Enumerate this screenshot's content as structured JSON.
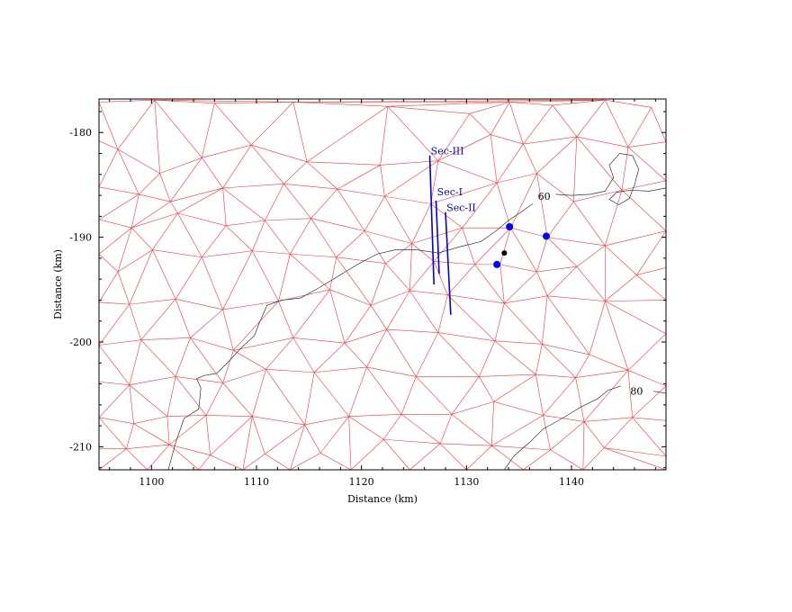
{
  "chart_data": {
    "type": "map",
    "xlabel": "Distance (km)",
    "ylabel": "Distance (km)",
    "xlim": [
      1095,
      1149
    ],
    "ylim": [
      -212.2,
      -176.8
    ],
    "x_ticks": [
      1100,
      1110,
      1120,
      1130,
      1140
    ],
    "y_ticks": [
      -180,
      -190,
      -200,
      -210
    ],
    "colors": {
      "mesh": "#ff3333",
      "sections": "#0000e0",
      "contours": "#333333",
      "stations": "#0000ff",
      "event": "#000000"
    },
    "mesh_nodes": [
      [
        1095,
        -177.1
      ],
      [
        1100.3,
        -176.9
      ],
      [
        1106,
        -177.2
      ],
      [
        1113.5,
        -177.1
      ],
      [
        1122.5,
        -177.5
      ],
      [
        1130.3,
        -178.2
      ],
      [
        1134.1,
        -177.1
      ],
      [
        1138.2,
        -177.4
      ],
      [
        1143.2,
        -176.9
      ],
      [
        1147.6,
        -177.6
      ],
      [
        1095,
        -180.8
      ],
      [
        1096.8,
        -181.6
      ],
      [
        1100.8,
        -183.9
      ],
      [
        1104.8,
        -182.4
      ],
      [
        1109.5,
        -181.2
      ],
      [
        1114.8,
        -182.8
      ],
      [
        1121.8,
        -183.1
      ],
      [
        1127.3,
        -182.7
      ],
      [
        1132.3,
        -180.2
      ],
      [
        1135.4,
        -181.1
      ],
      [
        1140.5,
        -180.4
      ],
      [
        1145.4,
        -181.4
      ],
      [
        1149,
        -180.9
      ],
      [
        1095,
        -185.2
      ],
      [
        1098.8,
        -185.9
      ],
      [
        1101.8,
        -186.6
      ],
      [
        1106.8,
        -185.3
      ],
      [
        1112.6,
        -184.9
      ],
      [
        1117.7,
        -185.4
      ],
      [
        1122.2,
        -186.1
      ],
      [
        1126.6,
        -186.8
      ],
      [
        1132.9,
        -184.8
      ],
      [
        1136.7,
        -183.9
      ],
      [
        1140.2,
        -186.6
      ],
      [
        1144.8,
        -185.5
      ],
      [
        1149,
        -184.6
      ],
      [
        1095,
        -188.3
      ],
      [
        1098.1,
        -189.1
      ],
      [
        1102.5,
        -187.7
      ],
      [
        1107.1,
        -188.9
      ],
      [
        1110.8,
        -188.4
      ],
      [
        1115.2,
        -188.2
      ],
      [
        1120.3,
        -189.4
      ],
      [
        1124.8,
        -190.6
      ],
      [
        1129.6,
        -189.1
      ],
      [
        1134.2,
        -189.1
      ],
      [
        1137.7,
        -190.0
      ],
      [
        1143.2,
        -190.8
      ],
      [
        1149,
        -189.4
      ],
      [
        1095,
        -191.6
      ],
      [
        1096.8,
        -193.3
      ],
      [
        1100.1,
        -191.2
      ],
      [
        1104.8,
        -191.9
      ],
      [
        1109.6,
        -191.3
      ],
      [
        1113.2,
        -191.6
      ],
      [
        1117.6,
        -191.9
      ],
      [
        1122.3,
        -192.5
      ],
      [
        1126.9,
        -192.3
      ],
      [
        1130.8,
        -192.6
      ],
      [
        1133.2,
        -192.6
      ],
      [
        1136.7,
        -193.3
      ],
      [
        1140.5,
        -192.8
      ],
      [
        1146.2,
        -193.6
      ],
      [
        1149,
        -192.9
      ],
      [
        1095,
        -196.2
      ],
      [
        1097.9,
        -196.4
      ],
      [
        1102.3,
        -195.9
      ],
      [
        1106.8,
        -196.9
      ],
      [
        1112.1,
        -196.1
      ],
      [
        1117.0,
        -195.0
      ],
      [
        1120.9,
        -196.5
      ],
      [
        1124.6,
        -195.1
      ],
      [
        1128.2,
        -195.5
      ],
      [
        1133.6,
        -196.3
      ],
      [
        1137.7,
        -195.6
      ],
      [
        1143.2,
        -196.1
      ],
      [
        1149,
        -196.0
      ],
      [
        1095,
        -200.3
      ],
      [
        1099.0,
        -199.8
      ],
      [
        1103.7,
        -199.6
      ],
      [
        1107.8,
        -200.8
      ],
      [
        1113.5,
        -199.6
      ],
      [
        1118.4,
        -200.1
      ],
      [
        1122.4,
        -198.8
      ],
      [
        1127.3,
        -199.1
      ],
      [
        1132.7,
        -199.9
      ],
      [
        1137.2,
        -200.2
      ],
      [
        1141.7,
        -201.2
      ],
      [
        1149,
        -199.2
      ],
      [
        1095,
        -203.8
      ],
      [
        1097.9,
        -204.1
      ],
      [
        1102.3,
        -203.3
      ],
      [
        1106.8,
        -203.9
      ],
      [
        1110.9,
        -202.6
      ],
      [
        1115.5,
        -202.9
      ],
      [
        1120.5,
        -202.4
      ],
      [
        1125.2,
        -203.3
      ],
      [
        1131.2,
        -203.3
      ],
      [
        1136.6,
        -203.1
      ],
      [
        1140.4,
        -203.4
      ],
      [
        1145.4,
        -202.7
      ],
      [
        1149,
        -204.2
      ],
      [
        1095,
        -207.2
      ],
      [
        1098.3,
        -207.8
      ],
      [
        1101.5,
        -207.1
      ],
      [
        1105.2,
        -207.0
      ],
      [
        1109.6,
        -207.1
      ],
      [
        1114.6,
        -207.9
      ],
      [
        1118.8,
        -207.1
      ],
      [
        1123.8,
        -206.9
      ],
      [
        1128.6,
        -206.9
      ],
      [
        1132.6,
        -205.7
      ],
      [
        1137.3,
        -207.0
      ],
      [
        1141.2,
        -207.6
      ],
      [
        1145.8,
        -207.2
      ],
      [
        1149,
        -207.5
      ],
      [
        1095,
        -210.2
      ],
      [
        1097.6,
        -210.2
      ],
      [
        1101.7,
        -209.8
      ],
      [
        1105.6,
        -210.8
      ],
      [
        1110.8,
        -210.7
      ],
      [
        1116.1,
        -210.6
      ],
      [
        1122.1,
        -209.3
      ],
      [
        1127.5,
        -209.7
      ],
      [
        1132.4,
        -209.9
      ],
      [
        1138.0,
        -210.3
      ],
      [
        1143.1,
        -210.1
      ],
      [
        1149,
        -210.9
      ],
      [
        1095,
        -212.2
      ],
      [
        1099.6,
        -212.2
      ],
      [
        1104.5,
        -212.2
      ],
      [
        1108.7,
        -212.2
      ],
      [
        1113.2,
        -212.2
      ],
      [
        1119.0,
        -212.2
      ],
      [
        1124.6,
        -212.2
      ],
      [
        1130.0,
        -212.2
      ],
      [
        1135.4,
        -212.2
      ],
      [
        1141.1,
        -212.2
      ],
      [
        1149,
        -212.2
      ]
    ],
    "contours": [
      {
        "label": "60",
        "label_x": 1137.4,
        "label_y": -186.1,
        "points": [
          [
            1101.6,
            -212.2
          ],
          [
            1102.3,
            -209.6
          ],
          [
            1103.1,
            -207.3
          ],
          [
            1104.5,
            -206.4
          ],
          [
            1104.7,
            -204.4
          ],
          [
            1104.3,
            -203.5
          ],
          [
            1105.0,
            -203.2
          ],
          [
            1106.2,
            -203.0
          ],
          [
            1107.4,
            -201.8
          ],
          [
            1108.6,
            -200.5
          ],
          [
            1109.8,
            -199.4
          ],
          [
            1110.3,
            -198.1
          ],
          [
            1111.0,
            -196.5
          ],
          [
            1112.4,
            -196.0
          ],
          [
            1114.2,
            -195.8
          ],
          [
            1116.0,
            -194.8
          ],
          [
            1117.8,
            -193.7
          ],
          [
            1119.6,
            -192.6
          ],
          [
            1121.5,
            -191.6
          ],
          [
            1123.2,
            -191.2
          ],
          [
            1125.3,
            -191.2
          ],
          [
            1127.3,
            -191.5
          ],
          [
            1129.4,
            -190.9
          ],
          [
            1131.4,
            -190.4
          ],
          [
            1132.8,
            -189.4
          ],
          [
            1134.0,
            -188.4
          ],
          [
            1135.2,
            -187.6
          ],
          [
            1136.3,
            -186.8
          ]
        ]
      },
      {
        "label": "",
        "label_x": 0,
        "label_y": 0,
        "points": [
          [
            1138.5,
            -185.9
          ],
          [
            1140.0,
            -186.0
          ],
          [
            1141.8,
            -185.9
          ],
          [
            1143.2,
            -185.6
          ],
          [
            1144.0,
            -184.3
          ],
          [
            1143.6,
            -183.1
          ],
          [
            1144.6,
            -182.0
          ],
          [
            1145.8,
            -182.2
          ],
          [
            1146.4,
            -183.5
          ],
          [
            1146.0,
            -185.0
          ],
          [
            1145.5,
            -186.3
          ],
          [
            1144.5,
            -186.9
          ],
          [
            1143.6,
            -186.4
          ],
          [
            1144.3,
            -185.7
          ],
          [
            1145.6,
            -185.5
          ],
          [
            1147.4,
            -185.6
          ],
          [
            1149,
            -185.3
          ]
        ]
      },
      {
        "label": "80",
        "label_x": 1146.2,
        "label_y": -204.7,
        "points": [
          [
            1133.6,
            -212.2
          ],
          [
            1134.5,
            -210.9
          ],
          [
            1136.0,
            -209.6
          ],
          [
            1137.3,
            -208.3
          ],
          [
            1139.1,
            -207.3
          ],
          [
            1140.9,
            -206.2
          ],
          [
            1142.5,
            -205.4
          ],
          [
            1143.5,
            -204.6
          ],
          [
            1144.7,
            -204.2
          ]
        ]
      },
      {
        "label": "",
        "label_x": 0,
        "label_y": 0,
        "points": [
          [
            1147.8,
            -204.7
          ],
          [
            1149,
            -204.9
          ]
        ]
      }
    ],
    "sections": [
      {
        "name": "Sec-III",
        "label_x": 1126.6,
        "label_y": -182.1,
        "x1": 1126.5,
        "y1": -182.2,
        "x2": 1126.9,
        "y2": -194.5
      },
      {
        "name": "Sec-I",
        "label_x": 1127.2,
        "label_y": -186.0,
        "x1": 1127.1,
        "y1": -186.5,
        "x2": 1127.4,
        "y2": -193.5
      },
      {
        "name": "Sec-II",
        "label_x": 1128.1,
        "label_y": -187.5,
        "x1": 1128.0,
        "y1": -187.6,
        "x2": 1128.5,
        "y2": -197.4
      }
    ],
    "stations": [
      {
        "x": 1134.1,
        "y": -189.0
      },
      {
        "x": 1137.6,
        "y": -189.9
      },
      {
        "x": 1132.9,
        "y": -192.6
      }
    ],
    "event": {
      "x": 1133.6,
      "y": -191.5
    }
  }
}
